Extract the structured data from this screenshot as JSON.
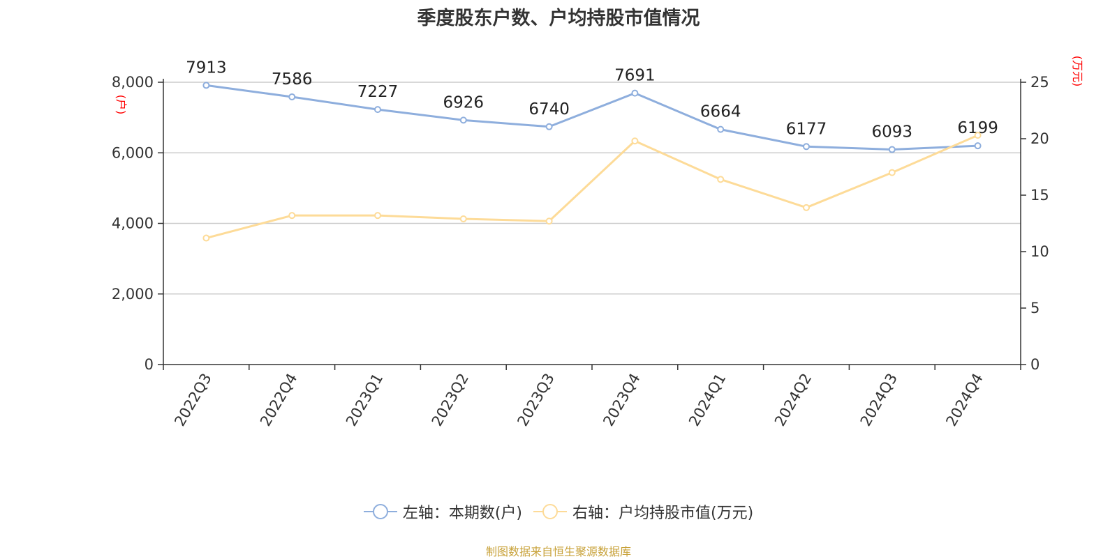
{
  "chart_data": {
    "type": "line",
    "title": "季度股东户数、户均持股市值情况",
    "categories": [
      "2022Q3",
      "2022Q4",
      "2023Q1",
      "2023Q2",
      "2023Q3",
      "2023Q4",
      "2024Q1",
      "2024Q2",
      "2024Q3",
      "2024Q4"
    ],
    "series": [
      {
        "name": "左轴：本期数(户)",
        "axis": "left",
        "color": "#8eaedd",
        "values": [
          7913,
          7586,
          7227,
          6926,
          6740,
          7691,
          6664,
          6177,
          6093,
          6199
        ],
        "data_labels": [
          "7913",
          "7586",
          "7227",
          "6926",
          "6740",
          "7691",
          "6664",
          "6177",
          "6093",
          "6199"
        ]
      },
      {
        "name": "右轴：户均持股市值(万元)",
        "axis": "right",
        "color": "#fddb98",
        "values": [
          11.2,
          13.2,
          13.2,
          12.9,
          12.7,
          19.8,
          16.4,
          13.9,
          17.0,
          20.3
        ]
      }
    ],
    "left_axis": {
      "label": "(户)",
      "ylim": [
        0,
        8000
      ],
      "ticks": [
        "0",
        "2,000",
        "4,000",
        "6,000",
        "8,000"
      ],
      "tick_values": [
        0,
        2000,
        4000,
        6000,
        8000
      ]
    },
    "right_axis": {
      "label": "(万元)",
      "ylim": [
        0,
        25
      ],
      "ticks": [
        "0",
        "5",
        "10",
        "15",
        "20",
        "25"
      ],
      "tick_values": [
        0,
        5,
        10,
        15,
        20,
        25
      ]
    },
    "grid": true,
    "legend_position": "bottom",
    "axis_label_color": "#ff0000"
  },
  "source_note": "制图数据来自恒生聚源数据库"
}
